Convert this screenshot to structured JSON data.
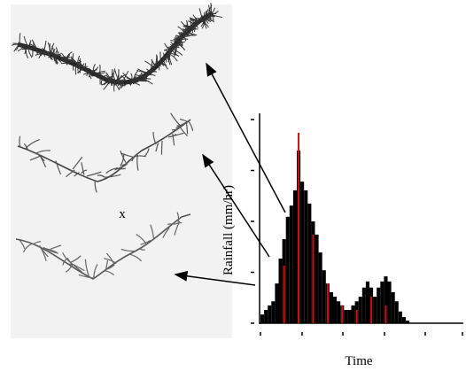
{
  "label_x": "x",
  "chart_data": {
    "type": "bar",
    "ylabel": "Rainfall (mm/hr)",
    "xlabel": "Time",
    "categories": [
      null,
      null,
      null,
      null,
      null,
      null,
      null,
      null,
      null,
      null,
      null,
      null,
      null,
      null,
      null,
      null,
      null,
      null,
      null,
      null,
      null,
      null,
      null,
      null,
      null,
      null,
      null,
      null,
      null,
      null,
      null,
      null,
      null,
      null,
      null,
      null,
      null,
      null,
      null,
      null,
      null
    ],
    "series": [
      {
        "color": "#000000",
        "values": [
          0.17,
          0.26,
          0.35,
          0.43,
          0.78,
          1.27,
          1.65,
          2.09,
          2.31,
          2.61,
          3.39,
          2.78,
          2.61,
          2.35,
          2.0,
          1.74,
          1.39,
          1.04,
          0.78,
          0.61,
          0.52,
          0.43,
          0.35,
          0.26,
          0.26,
          0.35,
          0.43,
          0.52,
          0.7,
          0.82,
          0.7,
          0.52,
          0.7,
          0.82,
          0.92,
          0.82,
          0.61,
          0.43,
          0.23,
          0.12,
          0.05
        ]
      },
      {
        "color": "#d01010",
        "values": [
          null,
          null,
          null,
          null,
          null,
          null,
          1.13,
          null,
          null,
          null,
          3.74,
          null,
          null,
          null,
          1.74,
          null,
          null,
          null,
          0.78,
          null,
          null,
          null,
          0.35,
          null,
          null,
          null,
          0.26,
          null,
          null,
          null,
          0.52,
          null,
          null,
          null,
          0.35,
          null,
          null,
          null,
          null,
          null,
          null
        ]
      }
    ],
    "ylim": [
      0,
      4
    ],
    "yticks": [
      0,
      1,
      2,
      3,
      4
    ]
  }
}
